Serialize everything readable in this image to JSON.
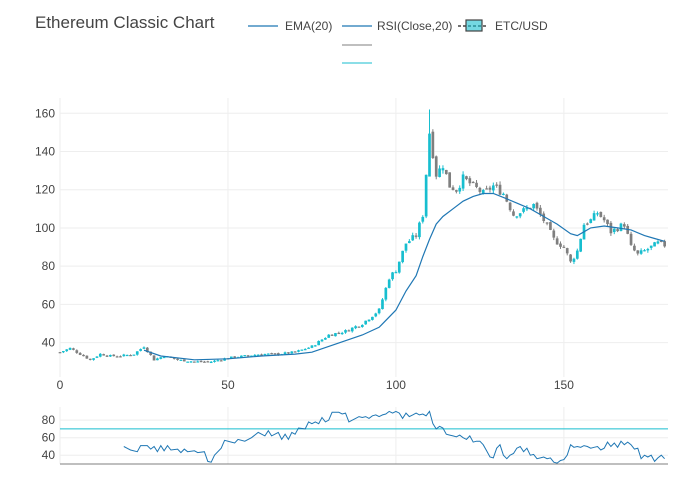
{
  "chart_data": {
    "type": "candlestick",
    "title": "Ethereum Classic Chart",
    "colors": {
      "increasing": "#17becf",
      "decreasing": "#7f7f7f",
      "line": "#1f77b4",
      "rsi": "#1f77b4",
      "overbought": "#17becf",
      "oversold": "#7f7f7f"
    },
    "legend": {
      "placement": "top",
      "entries": [
        "EMA(20)",
        "RSI(Close,20)",
        "ETC/USD"
      ]
    },
    "main": {
      "xlim": [
        0,
        181
      ],
      "ylim": [
        22,
        168
      ],
      "x_ticks": [
        0,
        50,
        100,
        150
      ],
      "y_ticks": [
        40,
        60,
        80,
        100,
        120,
        140,
        160
      ],
      "ohlc_keypoints": [
        [
          0,
          35
        ],
        [
          3,
          37
        ],
        [
          6,
          34
        ],
        [
          9,
          31
        ],
        [
          12,
          34
        ],
        [
          15,
          33
        ],
        [
          18,
          33
        ],
        [
          22,
          34
        ],
        [
          25,
          38
        ],
        [
          28,
          31
        ],
        [
          31,
          33
        ],
        [
          35,
          31
        ],
        [
          40,
          30
        ],
        [
          45,
          30
        ],
        [
          50,
          32
        ],
        [
          55,
          33
        ],
        [
          60,
          34
        ],
        [
          65,
          34
        ],
        [
          70,
          35
        ],
        [
          75,
          38
        ],
        [
          80,
          44
        ],
        [
          85,
          46
        ],
        [
          90,
          50
        ],
        [
          95,
          57
        ],
        [
          98,
          74
        ],
        [
          100,
          78
        ],
        [
          103,
          92
        ],
        [
          106,
          96
        ],
        [
          108,
          107
        ],
        [
          110,
          150
        ],
        [
          112,
          128
        ],
        [
          114,
          133
        ],
        [
          116,
          122
        ],
        [
          118,
          120
        ],
        [
          120,
          126
        ],
        [
          123,
          122
        ],
        [
          126,
          118
        ],
        [
          129,
          122
        ],
        [
          132,
          118
        ],
        [
          135,
          107
        ],
        [
          138,
          109
        ],
        [
          141,
          112
        ],
        [
          144,
          104
        ],
        [
          147,
          94
        ],
        [
          150,
          90
        ],
        [
          152,
          82
        ],
        [
          154,
          88
        ],
        [
          156,
          102
        ],
        [
          158,
          104
        ],
        [
          160,
          108
        ],
        [
          162,
          104
        ],
        [
          164,
          98
        ],
        [
          166,
          100
        ],
        [
          168,
          102
        ],
        [
          170,
          90
        ],
        [
          172,
          86
        ],
        [
          174,
          88
        ],
        [
          176,
          90
        ],
        [
          178,
          92
        ],
        [
          180,
          91
        ]
      ],
      "ema20": [
        [
          25,
          36
        ],
        [
          30,
          33
        ],
        [
          40,
          31
        ],
        [
          50,
          31.5
        ],
        [
          60,
          33
        ],
        [
          70,
          34
        ],
        [
          75,
          35
        ],
        [
          80,
          38
        ],
        [
          85,
          41
        ],
        [
          90,
          44
        ],
        [
          95,
          48
        ],
        [
          100,
          57
        ],
        [
          103,
          67
        ],
        [
          106,
          75
        ],
        [
          108,
          85
        ],
        [
          110,
          94
        ],
        [
          112,
          102
        ],
        [
          114,
          106
        ],
        [
          117,
          110
        ],
        [
          120,
          114
        ],
        [
          123,
          116.5
        ],
        [
          126,
          118
        ],
        [
          129,
          118
        ],
        [
          132,
          116
        ],
        [
          136,
          113
        ],
        [
          140,
          110
        ],
        [
          144,
          106
        ],
        [
          148,
          102
        ],
        [
          152,
          97
        ],
        [
          154,
          96
        ],
        [
          156,
          98
        ],
        [
          158,
          100
        ],
        [
          162,
          101
        ],
        [
          166,
          100
        ],
        [
          170,
          99
        ],
        [
          174,
          96
        ],
        [
          177,
          94.5
        ],
        [
          180,
          93
        ]
      ]
    },
    "rsi": {
      "ylim": [
        30,
        95
      ],
      "y_ticks": [
        40,
        60,
        80
      ],
      "overbought": 70,
      "oversold": 30,
      "values": [
        [
          19,
          50
        ],
        [
          21,
          46
        ],
        [
          23,
          44
        ],
        [
          24,
          51
        ],
        [
          26,
          51
        ],
        [
          27,
          47
        ],
        [
          28,
          50
        ],
        [
          29,
          44
        ],
        [
          30,
          51
        ],
        [
          31,
          45
        ],
        [
          32,
          51
        ],
        [
          33,
          46
        ],
        [
          35,
          47
        ],
        [
          36,
          43
        ],
        [
          37,
          47
        ],
        [
          38,
          44
        ],
        [
          40,
          45
        ],
        [
          41,
          43
        ],
        [
          43,
          44
        ],
        [
          44,
          33
        ],
        [
          45,
          32
        ],
        [
          46,
          40
        ],
        [
          48,
          48
        ],
        [
          49,
          57
        ],
        [
          51,
          55
        ],
        [
          52,
          54
        ],
        [
          53,
          58
        ],
        [
          55,
          56
        ],
        [
          57,
          60
        ],
        [
          59,
          66
        ],
        [
          61,
          62
        ],
        [
          62,
          68
        ],
        [
          63,
          62
        ],
        [
          65,
          66
        ],
        [
          66,
          58
        ],
        [
          67,
          64
        ],
        [
          68,
          58
        ],
        [
          69,
          66
        ],
        [
          70,
          64
        ],
        [
          71,
          71
        ],
        [
          73,
          70
        ],
        [
          74,
          78
        ],
        [
          75,
          76
        ],
        [
          76,
          78
        ],
        [
          77,
          76
        ],
        [
          78,
          83
        ],
        [
          79,
          78
        ],
        [
          80,
          80
        ],
        [
          81,
          89
        ],
        [
          82,
          89
        ],
        [
          83,
          89
        ],
        [
          84,
          87
        ],
        [
          85,
          88
        ],
        [
          86,
          78
        ],
        [
          87,
          80
        ],
        [
          88,
          82
        ],
        [
          89,
          84
        ],
        [
          90,
          83
        ],
        [
          91,
          84
        ],
        [
          92,
          82
        ],
        [
          93,
          85
        ],
        [
          94,
          86
        ],
        [
          95,
          84
        ],
        [
          96,
          86
        ],
        [
          97,
          87
        ],
        [
          98,
          90
        ],
        [
          99,
          88
        ],
        [
          100,
          90
        ],
        [
          101,
          88
        ],
        [
          102,
          82
        ],
        [
          103,
          88
        ],
        [
          104,
          84
        ],
        [
          105,
          86
        ],
        [
          106,
          88
        ],
        [
          107,
          86
        ],
        [
          108,
          87
        ],
        [
          109,
          85
        ],
        [
          110,
          90
        ],
        [
          111,
          76
        ],
        [
          112,
          70
        ],
        [
          113,
          73
        ],
        [
          114,
          71
        ],
        [
          115,
          64
        ],
        [
          116,
          63
        ],
        [
          117,
          62
        ],
        [
          118,
          61
        ],
        [
          119,
          63
        ],
        [
          120,
          60
        ],
        [
          121,
          58
        ],
        [
          122,
          62
        ],
        [
          123,
          55
        ],
        [
          124,
          56
        ],
        [
          125,
          56
        ],
        [
          126,
          52
        ],
        [
          127,
          45
        ],
        [
          128,
          38
        ],
        [
          129,
          37
        ],
        [
          130,
          48
        ],
        [
          131,
          52
        ],
        [
          132,
          40
        ],
        [
          133,
          36
        ],
        [
          134,
          40
        ],
        [
          135,
          42
        ],
        [
          136,
          48
        ],
        [
          137,
          50
        ],
        [
          138,
          44
        ],
        [
          139,
          48
        ],
        [
          140,
          40
        ],
        [
          141,
          41
        ],
        [
          142,
          36
        ],
        [
          143,
          37
        ],
        [
          144,
          38
        ],
        [
          145,
          36
        ],
        [
          146,
          37
        ],
        [
          147,
          32
        ],
        [
          148,
          31
        ],
        [
          149,
          34
        ],
        [
          150,
          35
        ],
        [
          151,
          40
        ],
        [
          152,
          52
        ],
        [
          153,
          49
        ],
        [
          154,
          50
        ],
        [
          155,
          49
        ],
        [
          156,
          51
        ],
        [
          157,
          50
        ],
        [
          158,
          48
        ],
        [
          159,
          49
        ],
        [
          160,
          50
        ],
        [
          161,
          46
        ],
        [
          162,
          48
        ],
        [
          163,
          55
        ],
        [
          164,
          50
        ],
        [
          165,
          54
        ],
        [
          166,
          49
        ],
        [
          167,
          56
        ],
        [
          168,
          52
        ],
        [
          169,
          55
        ],
        [
          170,
          52
        ],
        [
          171,
          47
        ],
        [
          172,
          48
        ],
        [
          173,
          36
        ],
        [
          174,
          40
        ],
        [
          175,
          38
        ],
        [
          176,
          40
        ],
        [
          177,
          33
        ],
        [
          178,
          37
        ],
        [
          179,
          40
        ],
        [
          180,
          36
        ]
      ]
    }
  }
}
